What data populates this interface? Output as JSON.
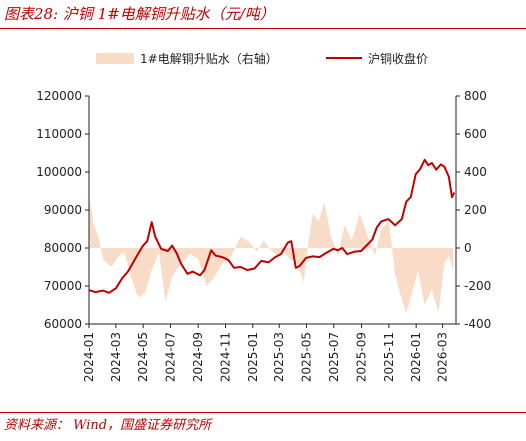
{
  "figure": {
    "title": "图表28:  沪铜 1#电解铜升贴水（元/吨）",
    "source": "资料来源： Wind，国盛证券研究所"
  },
  "colors": {
    "accent": "#c00000",
    "premium_fill": "#f8dcc8",
    "price_line": "#c00000"
  },
  "chart_data": {
    "type": "line",
    "x_type": "date",
    "x_range": [
      "2024-01-01",
      "2026-03-31"
    ],
    "x_ticks": [
      "2024-01",
      "2024-03",
      "2024-05",
      "2024-07",
      "2024-09",
      "2024-11",
      "2025-01",
      "2025-03",
      "2025-05",
      "2025-07",
      "2025-09",
      "2025-11",
      "2026-01",
      "2026-03"
    ],
    "y_left": {
      "range": [
        60000,
        120000
      ],
      "ticks": [
        60000,
        70000,
        80000,
        90000,
        100000,
        110000,
        120000
      ]
    },
    "y_right": {
      "range": [
        -400,
        800
      ],
      "ticks": [
        -400,
        -200,
        0,
        200,
        400,
        600,
        800
      ]
    },
    "legend_position": "top",
    "grid": false,
    "series": [
      {
        "name": "1#电解铜升贴水（右轴）",
        "type": "area",
        "axis": "right",
        "color": "#f8dcc8",
        "points": [
          [
            "2024-01-02",
            260
          ],
          [
            "2024-01-12",
            120
          ],
          [
            "2024-01-22",
            60
          ],
          [
            "2024-02-01",
            -60
          ],
          [
            "2024-02-20",
            -100
          ],
          [
            "2024-03-05",
            -50
          ],
          [
            "2024-03-20",
            -20
          ],
          [
            "2024-04-05",
            -160
          ],
          [
            "2024-04-20",
            -260
          ],
          [
            "2024-05-05",
            -240
          ],
          [
            "2024-05-20",
            -120
          ],
          [
            "2024-06-05",
            -20
          ],
          [
            "2024-06-20",
            -280
          ],
          [
            "2024-07-05",
            -150
          ],
          [
            "2024-07-25",
            -80
          ],
          [
            "2024-08-15",
            -30
          ],
          [
            "2024-09-01",
            -60
          ],
          [
            "2024-09-20",
            -200
          ],
          [
            "2024-10-05",
            -160
          ],
          [
            "2024-10-25",
            -80
          ],
          [
            "2024-11-15",
            -40
          ],
          [
            "2024-12-05",
            60
          ],
          [
            "2024-12-25",
            30
          ],
          [
            "2025-01-10",
            -20
          ],
          [
            "2025-01-25",
            40
          ],
          [
            "2025-02-10",
            -10
          ],
          [
            "2025-02-25",
            -40
          ],
          [
            "2025-03-10",
            -20
          ],
          [
            "2025-03-25",
            -60
          ],
          [
            "2025-04-10",
            -80
          ],
          [
            "2025-04-25",
            -180
          ],
          [
            "2025-05-05",
            30
          ],
          [
            "2025-05-15",
            180
          ],
          [
            "2025-05-28",
            140
          ],
          [
            "2025-06-10",
            240
          ],
          [
            "2025-06-25",
            60
          ],
          [
            "2025-07-10",
            -40
          ],
          [
            "2025-07-25",
            120
          ],
          [
            "2025-08-10",
            40
          ],
          [
            "2025-08-28",
            180
          ],
          [
            "2025-09-15",
            60
          ],
          [
            "2025-10-01",
            -40
          ],
          [
            "2025-10-15",
            100
          ],
          [
            "2025-11-01",
            140
          ],
          [
            "2025-11-15",
            -140
          ],
          [
            "2025-12-01",
            -280
          ],
          [
            "2025-12-10",
            -340
          ],
          [
            "2025-12-20",
            -260
          ],
          [
            "2026-01-05",
            -120
          ],
          [
            "2026-01-20",
            -300
          ],
          [
            "2026-02-05",
            -220
          ],
          [
            "2026-02-20",
            -340
          ],
          [
            "2026-03-05",
            -80
          ],
          [
            "2026-03-15",
            -40
          ],
          [
            "2026-03-25",
            -120
          ]
        ]
      },
      {
        "name": "沪铜收盘价",
        "type": "line",
        "axis": "left",
        "color": "#c00000",
        "points": [
          [
            "2024-01-02",
            68900
          ],
          [
            "2024-01-15",
            68400
          ],
          [
            "2024-02-01",
            68800
          ],
          [
            "2024-02-15",
            68200
          ],
          [
            "2024-03-01",
            69400
          ],
          [
            "2024-03-15",
            72000
          ],
          [
            "2024-03-28",
            73800
          ],
          [
            "2024-04-15",
            77500
          ],
          [
            "2024-04-30",
            80500
          ],
          [
            "2024-05-10",
            81800
          ],
          [
            "2024-05-20",
            86800
          ],
          [
            "2024-05-28",
            83000
          ],
          [
            "2024-06-10",
            79800
          ],
          [
            "2024-06-25",
            79200
          ],
          [
            "2024-07-05",
            80600
          ],
          [
            "2024-07-15",
            78600
          ],
          [
            "2024-07-25",
            75800
          ],
          [
            "2024-08-08",
            73200
          ],
          [
            "2024-08-20",
            73800
          ],
          [
            "2024-09-05",
            72800
          ],
          [
            "2024-09-15",
            74200
          ],
          [
            "2024-09-30",
            79400
          ],
          [
            "2024-10-10",
            78000
          ],
          [
            "2024-10-25",
            77600
          ],
          [
            "2024-11-08",
            76800
          ],
          [
            "2024-11-20",
            74800
          ],
          [
            "2024-12-05",
            75000
          ],
          [
            "2024-12-20",
            74200
          ],
          [
            "2025-01-05",
            74600
          ],
          [
            "2025-01-20",
            76600
          ],
          [
            "2025-02-05",
            76200
          ],
          [
            "2025-02-20",
            77600
          ],
          [
            "2025-03-05",
            78400
          ],
          [
            "2025-03-20",
            81400
          ],
          [
            "2025-03-28",
            81800
          ],
          [
            "2025-04-07",
            74800
          ],
          [
            "2025-04-15",
            75200
          ],
          [
            "2025-04-30",
            77400
          ],
          [
            "2025-05-15",
            77800
          ],
          [
            "2025-05-30",
            77600
          ],
          [
            "2025-06-15",
            78800
          ],
          [
            "2025-06-30",
            79800
          ],
          [
            "2025-07-10",
            79400
          ],
          [
            "2025-07-20",
            80000
          ],
          [
            "2025-07-31",
            78400
          ],
          [
            "2025-08-15",
            79000
          ],
          [
            "2025-08-31",
            79200
          ],
          [
            "2025-09-10",
            80400
          ],
          [
            "2025-09-25",
            82200
          ],
          [
            "2025-10-05",
            85400
          ],
          [
            "2025-10-15",
            87000
          ],
          [
            "2025-10-31",
            87600
          ],
          [
            "2025-11-15",
            86000
          ],
          [
            "2025-11-30",
            87600
          ],
          [
            "2025-12-10",
            92200
          ],
          [
            "2025-12-20",
            93400
          ],
          [
            "2025-12-31",
            99400
          ],
          [
            "2026-01-10",
            100800
          ],
          [
            "2026-01-20",
            103200
          ],
          [
            "2026-01-28",
            101800
          ],
          [
            "2026-02-05",
            102400
          ],
          [
            "2026-02-15",
            100600
          ],
          [
            "2026-02-25",
            102000
          ],
          [
            "2026-03-05",
            101400
          ],
          [
            "2026-03-15",
            98800
          ],
          [
            "2026-03-22",
            93400
          ],
          [
            "2026-03-27",
            94600
          ]
        ]
      }
    ]
  }
}
